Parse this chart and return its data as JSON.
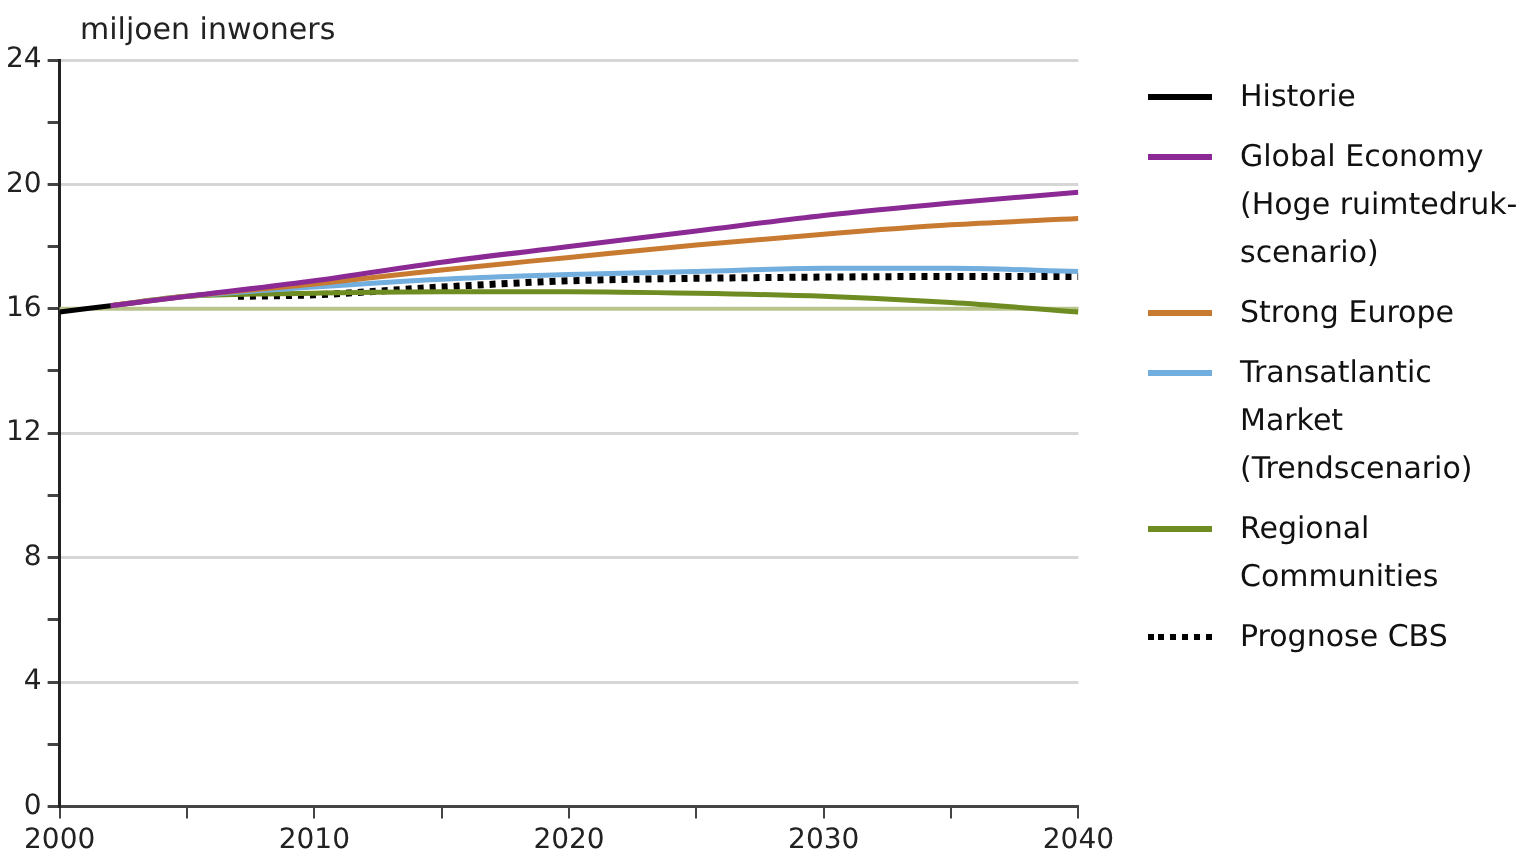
{
  "chart_data": {
    "type": "line",
    "ylabel": "miljoen inwoners",
    "xlim": [
      2000,
      2040
    ],
    "ylim": [
      0,
      24
    ],
    "xticks": [
      2000,
      {
        "value": 2005,
        "label": null
      },
      2010,
      {
        "value": 2015,
        "label": null
      },
      2020,
      {
        "value": 2025,
        "label": null
      },
      2030,
      {
        "value": 2035,
        "label": null
      },
      2040
    ],
    "yticks": [
      0,
      {
        "value": 2,
        "label": null
      },
      4,
      {
        "value": 6,
        "label": null
      },
      8,
      {
        "value": 10,
        "label": null
      },
      12,
      {
        "value": 14,
        "label": null
      },
      16,
      {
        "value": 18,
        "label": null
      },
      20,
      {
        "value": 22,
        "label": null
      },
      24
    ],
    "grid": "y",
    "legend": "right",
    "marker": "none",
    "ref_lines": [
      {
        "axis": "y",
        "value": 16,
        "color": "#b8c48c"
      }
    ],
    "series": [
      {
        "name": "Historie",
        "color": "#000000",
        "x": [
          2000,
          2002
        ],
        "values": [
          15.9,
          16.1
        ]
      },
      {
        "name": "Global Economy (Hoge ruimtedruk-scenario)",
        "color": "#8b2a94",
        "x": [
          2002,
          2005,
          2010,
          2015,
          2020,
          2025,
          2030,
          2035,
          2040
        ],
        "values": [
          16.1,
          16.4,
          16.9,
          17.5,
          18.0,
          18.5,
          19.0,
          19.4,
          19.75
        ]
      },
      {
        "name": "Strong Europe",
        "color": "#c87a30",
        "x": [
          2002,
          2005,
          2010,
          2015,
          2020,
          2025,
          2030,
          2035,
          2040
        ],
        "values": [
          16.1,
          16.4,
          16.8,
          17.25,
          17.65,
          18.05,
          18.4,
          18.7,
          18.9
        ]
      },
      {
        "name": "Transatlantic Market (Trendscenario)",
        "color": "#72aede",
        "x": [
          2002,
          2005,
          2010,
          2015,
          2020,
          2025,
          2030,
          2035,
          2040
        ],
        "values": [
          16.1,
          16.4,
          16.7,
          16.95,
          17.1,
          17.2,
          17.3,
          17.3,
          17.2
        ]
      },
      {
        "name": "Regional Communities",
        "color": "#6e8c22",
        "x": [
          2002,
          2005,
          2010,
          2015,
          2020,
          2025,
          2030,
          2035,
          2040
        ],
        "values": [
          16.1,
          16.4,
          16.5,
          16.55,
          16.55,
          16.5,
          16.4,
          16.2,
          15.9
        ]
      },
      {
        "name": "Prognose CBS",
        "color": "#000000",
        "line_style": "dotted",
        "x": [
          2007,
          2010,
          2015,
          2020,
          2025,
          2030,
          2035,
          2040
        ],
        "values": [
          16.4,
          16.45,
          16.7,
          16.9,
          16.98,
          17.02,
          17.04,
          17.04
        ]
      }
    ]
  }
}
